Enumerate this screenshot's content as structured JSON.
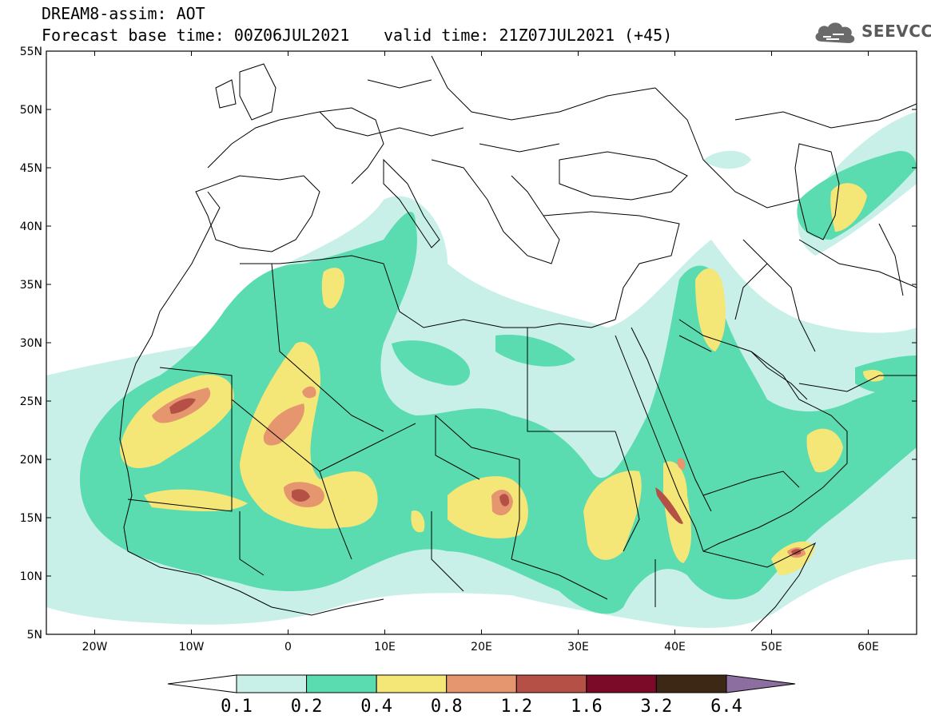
{
  "header": {
    "title_line1": "DREAM8-assim: AOT",
    "title_line2": "Forecast base time: 00Z06JUL2021",
    "valid_time": "valid time: 21Z07JUL2021 (+45)",
    "logo_text": "SEEVCCC",
    "logo_icon": "cloud-icon"
  },
  "map": {
    "projection": "lat-lon",
    "extent": {
      "lon": [
        -25,
        65
      ],
      "lat": [
        5,
        55
      ]
    },
    "lat_ticks": [
      "55N",
      "50N",
      "45N",
      "40N",
      "35N",
      "30N",
      "25N",
      "20N",
      "15N",
      "10N",
      "5N"
    ],
    "lon_ticks": [
      "20W",
      "10W",
      "0",
      "10E",
      "20E",
      "30E",
      "40E",
      "50E",
      "60E"
    ],
    "variable": "Aerosol Optical Thickness (AOT)"
  },
  "colorbar": {
    "levels": [
      "0.1",
      "0.2",
      "0.4",
      "0.8",
      "1.2",
      "1.6",
      "3.2",
      "6.4"
    ],
    "colors": [
      "#ffffff",
      "#c8f0e8",
      "#5adcb0",
      "#f5e678",
      "#e6966e",
      "#b45046",
      "#7a0a28",
      "#3c2814",
      "#8c6ea0"
    ]
  }
}
